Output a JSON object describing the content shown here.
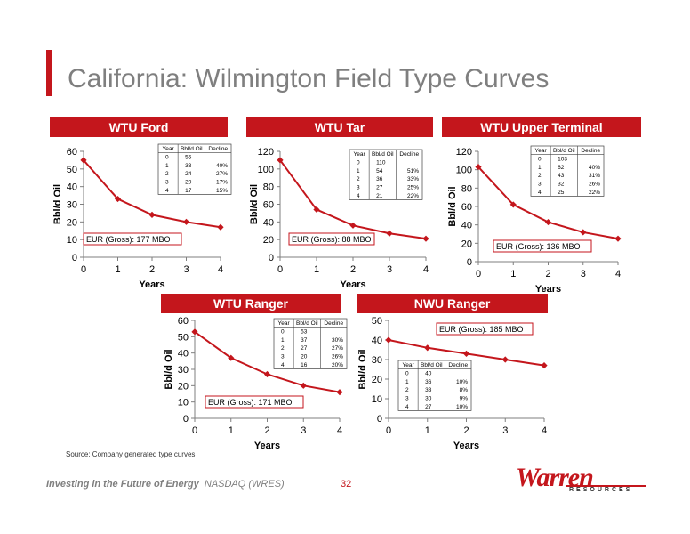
{
  "slide": {
    "title": "California: Wilmington Field Type Curves",
    "source": "Source: Company generated type curves",
    "footer_tagline_bold": "Investing in the Future of Energy",
    "footer_tagline_rest": "NASDAQ (WRES)",
    "page_number": "32",
    "logo_text": "Warren",
    "logo_subtext": "RESOURCES",
    "colors": {
      "accent": "#c4161c",
      "title": "#7f7f7f",
      "series": "#c4161c"
    }
  },
  "chart_data": [
    {
      "type": "line",
      "title": "WTU Ford",
      "xlabel": "Years",
      "ylabel": "Bbl/d Oil",
      "x": [
        0,
        1,
        2,
        3,
        4
      ],
      "xticks": [
        "0",
        "1",
        "2",
        "3",
        "4"
      ],
      "ylim": [
        0,
        60
      ],
      "yticks": [
        "0",
        "10",
        "20",
        "30",
        "40",
        "50",
        "60"
      ],
      "values": [
        55,
        33,
        24,
        20,
        17
      ],
      "eur_label": "EUR (Gross): 177 MBO",
      "grid": false,
      "table": {
        "headers": [
          "Year",
          "Bbl/d Oil",
          "Decline"
        ],
        "rows": [
          [
            "0",
            "55",
            ""
          ],
          [
            "1",
            "33",
            "40%"
          ],
          [
            "2",
            "24",
            "27%"
          ],
          [
            "3",
            "20",
            "17%"
          ],
          [
            "4",
            "17",
            "15%"
          ]
        ]
      }
    },
    {
      "type": "line",
      "title": "WTU Tar",
      "xlabel": "Years",
      "ylabel": "Bbl/d Oil",
      "x": [
        0,
        1,
        2,
        3,
        4
      ],
      "xticks": [
        "0",
        "1",
        "2",
        "3",
        "4"
      ],
      "ylim": [
        0,
        120
      ],
      "yticks": [
        "0",
        "20",
        "40",
        "60",
        "80",
        "100",
        "120"
      ],
      "values": [
        110,
        54,
        36,
        27,
        21
      ],
      "eur_label": "EUR (Gross): 88 MBO",
      "grid": false,
      "table": {
        "headers": [
          "Year",
          "Bbl/d Oil",
          "Decline"
        ],
        "rows": [
          [
            "0",
            "110",
            ""
          ],
          [
            "1",
            "54",
            "51%"
          ],
          [
            "2",
            "36",
            "33%"
          ],
          [
            "3",
            "27",
            "25%"
          ],
          [
            "4",
            "21",
            "22%"
          ]
        ]
      }
    },
    {
      "type": "line",
      "title": "WTU Upper Terminal",
      "xlabel": "Years",
      "ylabel": "Bbl/d Oil",
      "x": [
        0,
        1,
        2,
        3,
        4
      ],
      "xticks": [
        "0",
        "1",
        "2",
        "3",
        "4"
      ],
      "ylim": [
        0,
        120
      ],
      "yticks": [
        "0",
        "20",
        "40",
        "60",
        "80",
        "100",
        "120"
      ],
      "values": [
        103,
        62,
        43,
        32,
        25
      ],
      "eur_label": "EUR (Gross): 136 MBO",
      "grid": false,
      "table": {
        "headers": [
          "Year",
          "Bbl/d Oil",
          "Decline"
        ],
        "rows": [
          [
            "0",
            "103",
            ""
          ],
          [
            "1",
            "62",
            "40%"
          ],
          [
            "2",
            "43",
            "31%"
          ],
          [
            "3",
            "32",
            "26%"
          ],
          [
            "4",
            "25",
            "22%"
          ]
        ]
      }
    },
    {
      "type": "line",
      "title": "WTU Ranger",
      "xlabel": "Years",
      "ylabel": "Bbl/d Oil",
      "x": [
        0,
        1,
        2,
        3,
        4
      ],
      "xticks": [
        "0",
        "1",
        "2",
        "3",
        "4"
      ],
      "ylim": [
        0,
        60
      ],
      "yticks": [
        "0",
        "10",
        "20",
        "30",
        "40",
        "50",
        "60"
      ],
      "values": [
        53,
        37,
        27,
        20,
        16
      ],
      "eur_label": "EUR (Gross): 171 MBO",
      "grid": false,
      "table": {
        "headers": [
          "Year",
          "Bbl/d Oil",
          "Decline"
        ],
        "rows": [
          [
            "0",
            "53",
            ""
          ],
          [
            "1",
            "37",
            "30%"
          ],
          [
            "2",
            "27",
            "27%"
          ],
          [
            "3",
            "20",
            "26%"
          ],
          [
            "4",
            "16",
            "20%"
          ]
        ]
      }
    },
    {
      "type": "line",
      "title": "NWU Ranger",
      "xlabel": "Years",
      "ylabel": "Bbl/d Oil",
      "x": [
        0,
        1,
        2,
        3,
        4
      ],
      "xticks": [
        "0",
        "1",
        "2",
        "3",
        "4"
      ],
      "ylim": [
        0,
        50
      ],
      "yticks": [
        "0",
        "10",
        "20",
        "30",
        "40",
        "50"
      ],
      "values": [
        40,
        36,
        33,
        30,
        27
      ],
      "eur_label": "EUR (Gross): 185 MBO",
      "grid": false,
      "table": {
        "headers": [
          "Year",
          "Bbl/d Oil",
          "Decline"
        ],
        "rows": [
          [
            "0",
            "40",
            ""
          ],
          [
            "1",
            "36",
            "10%"
          ],
          [
            "2",
            "33",
            "8%"
          ],
          [
            "3",
            "30",
            "9%"
          ],
          [
            "4",
            "27",
            "10%"
          ]
        ]
      }
    }
  ]
}
